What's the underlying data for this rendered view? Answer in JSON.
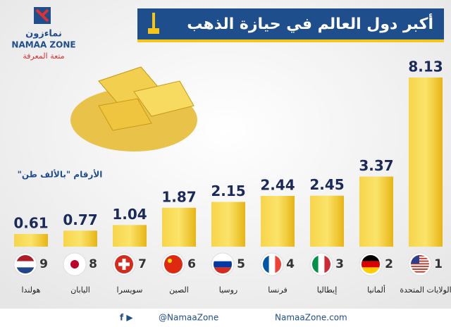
{
  "logo": {
    "arabic": "نماءزون",
    "latin": "NAMAA ZONE",
    "tagline": "متعة المعرفة"
  },
  "footer": {
    "handle": "@NamaaZone",
    "site": "NamaaZone.com"
  },
  "chart_data": {
    "type": "bar",
    "title": "أكبر دول العالم في حيازة الذهب",
    "note": "الأرقام \"بالألف طن\"",
    "categories": [
      "الولايات المتحدة",
      "ألمانيا",
      "إيطاليا",
      "فرنسا",
      "روسيا",
      "الصين",
      "سويسرا",
      "اليابان",
      "هولندا"
    ],
    "ranks": [
      1,
      2,
      3,
      4,
      5,
      6,
      7,
      8,
      9
    ],
    "values": [
      8.13,
      3.37,
      2.45,
      2.44,
      2.15,
      1.87,
      1.04,
      0.77,
      0.61
    ],
    "color": "#f5c518"
  }
}
